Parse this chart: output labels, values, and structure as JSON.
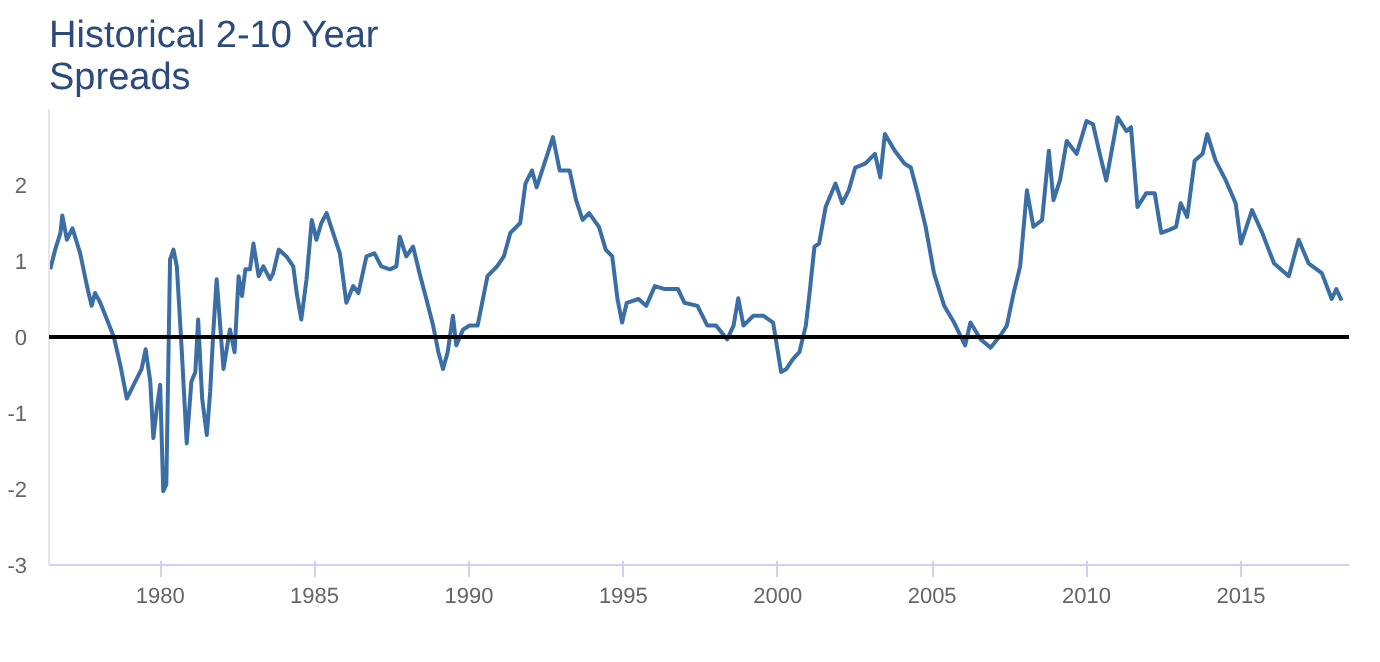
{
  "chart_data": {
    "type": "line",
    "title": "Historical 2-10 Year Spreads",
    "xlim": [
      1976.4,
      2018.5
    ],
    "xticks": [
      1980,
      1985,
      1990,
      1995,
      2000,
      2005,
      2010,
      2015
    ],
    "ylim": [
      -3,
      3
    ],
    "yticks": [
      -3,
      -2,
      -1,
      0,
      1,
      2
    ],
    "grid": false,
    "marker": "none",
    "line_style": "solid",
    "ref_lines": [
      {
        "axis": "y",
        "value": 0,
        "color": "#000000"
      }
    ],
    "series": [
      {
        "color": "#3a6ea5",
        "x": [
          1976.44,
          1976.6,
          1976.77,
          1976.83,
          1976.98,
          1977.16,
          1977.41,
          1977.63,
          1977.78,
          1977.89,
          1978.06,
          1978.23,
          1978.5,
          1978.71,
          1978.92,
          1979.14,
          1979.4,
          1979.53,
          1979.68,
          1979.78,
          1979.89,
          1980.0,
          1980.1,
          1980.2,
          1980.32,
          1980.43,
          1980.54,
          1980.69,
          1980.86,
          1981.01,
          1981.14,
          1981.23,
          1981.36,
          1981.51,
          1981.62,
          1981.72,
          1981.83,
          1982.05,
          1982.26,
          1982.41,
          1982.54,
          1982.65,
          1982.76,
          1982.91,
          1983.02,
          1983.19,
          1983.34,
          1983.56,
          1983.66,
          1983.84,
          1984.09,
          1984.31,
          1984.42,
          1984.57,
          1984.74,
          1984.91,
          1985.06,
          1985.22,
          1985.39,
          1985.6,
          1985.82,
          1986.03,
          1986.25,
          1986.42,
          1986.68,
          1986.94,
          1987.16,
          1987.44,
          1987.65,
          1987.76,
          1987.97,
          1988.19,
          1988.4,
          1988.62,
          1988.84,
          1989.01,
          1989.16,
          1989.31,
          1989.48,
          1989.59,
          1989.81,
          1990.02,
          1990.28,
          1990.6,
          1990.91,
          1991.13,
          1991.34,
          1991.66,
          1991.83,
          1992.04,
          1992.19,
          1992.4,
          1992.72,
          1992.94,
          1993.26,
          1993.47,
          1993.68,
          1993.89,
          1994.21,
          1994.43,
          1994.64,
          1994.81,
          1994.96,
          1995.11,
          1995.49,
          1995.74,
          1996.02,
          1996.34,
          1996.77,
          1996.98,
          1997.4,
          1997.72,
          1998.0,
          1998.36,
          1998.57,
          1998.72,
          1998.89,
          1999.21,
          1999.53,
          1999.85,
          2000.11,
          2000.28,
          2000.49,
          2000.7,
          2000.91,
          2001.02,
          2001.19,
          2001.34,
          2001.55,
          2001.87,
          2002.09,
          2002.3,
          2002.51,
          2002.83,
          2003.15,
          2003.32,
          2003.47,
          2003.79,
          2004.11,
          2004.31,
          2004.53,
          2004.79,
          2005.06,
          2005.39,
          2005.71,
          2006.07,
          2006.24,
          2006.57,
          2006.89,
          2007.21,
          2007.42,
          2007.64,
          2007.85,
          2008.07,
          2008.28,
          2008.56,
          2008.78,
          2008.93,
          2009.14,
          2009.36,
          2009.68,
          2010.0,
          2010.21,
          2010.43,
          2010.64,
          2011.01,
          2011.29,
          2011.44,
          2011.65,
          2011.93,
          2012.21,
          2012.42,
          2012.68,
          2012.9,
          2013.05,
          2013.26,
          2013.5,
          2013.76,
          2013.91,
          2014.18,
          2014.51,
          2014.83,
          2015.0,
          2015.36,
          2015.69,
          2016.07,
          2016.55,
          2016.87,
          2017.19,
          2017.62,
          2017.94,
          2018.09,
          2018.26
        ],
        "values": [
          0.89,
          1.15,
          1.37,
          1.6,
          1.28,
          1.43,
          1.1,
          0.67,
          0.41,
          0.58,
          0.45,
          0.28,
          0,
          -0.37,
          -0.81,
          -0.63,
          -0.42,
          -0.16,
          -0.59,
          -1.33,
          -0.94,
          -0.63,
          -2.03,
          -1.94,
          1.02,
          1.15,
          0.93,
          -0.11,
          -1.4,
          -0.59,
          -0.46,
          0.23,
          -0.81,
          -1.29,
          -0.72,
          0.06,
          0.76,
          -0.42,
          0.1,
          -0.2,
          0.8,
          0.54,
          0.89,
          0.89,
          1.23,
          0.8,
          0.93,
          0.76,
          0.84,
          1.15,
          1.06,
          0.93,
          0.58,
          0.23,
          0.76,
          1.54,
          1.28,
          1.5,
          1.63,
          1.37,
          1.1,
          0.45,
          0.67,
          0.58,
          1.06,
          1.1,
          0.93,
          0.89,
          0.93,
          1.32,
          1.06,
          1.19,
          0.84,
          0.5,
          0.15,
          -0.2,
          -0.42,
          -0.2,
          0.28,
          -0.11,
          0.1,
          0.15,
          0.15,
          0.8,
          0.93,
          1.06,
          1.37,
          1.5,
          2.02,
          2.19,
          1.97,
          2.23,
          2.63,
          2.19,
          2.19,
          1.8,
          1.54,
          1.63,
          1.45,
          1.15,
          1.06,
          0.5,
          0.19,
          0.45,
          0.5,
          0.41,
          0.67,
          0.63,
          0.63,
          0.45,
          0.41,
          0.15,
          0.15,
          -0.03,
          0.15,
          0.51,
          0.15,
          0.28,
          0.28,
          0.19,
          -0.46,
          -0.42,
          -0.29,
          -0.2,
          0.15,
          0.54,
          1.19,
          1.23,
          1.71,
          2.02,
          1.76,
          1.93,
          2.23,
          2.28,
          2.41,
          2.1,
          2.67,
          2.45,
          2.28,
          2.23,
          1.89,
          1.45,
          0.84,
          0.41,
          0.19,
          -0.11,
          0.19,
          -0.03,
          -0.14,
          0.02,
          0.15,
          0.58,
          0.93,
          1.93,
          1.45,
          1.54,
          2.45,
          1.8,
          2.06,
          2.58,
          2.41,
          2.84,
          2.8,
          2.41,
          2.06,
          2.89,
          2.71,
          2.76,
          1.71,
          1.89,
          1.89,
          1.37,
          1.41,
          1.45,
          1.76,
          1.58,
          2.32,
          2.41,
          2.67,
          2.32,
          2.06,
          1.76,
          1.23,
          1.67,
          1.37,
          0.97,
          0.8,
          1.28,
          0.97,
          0.84,
          0.5,
          0.63,
          0.48
        ]
      }
    ]
  }
}
